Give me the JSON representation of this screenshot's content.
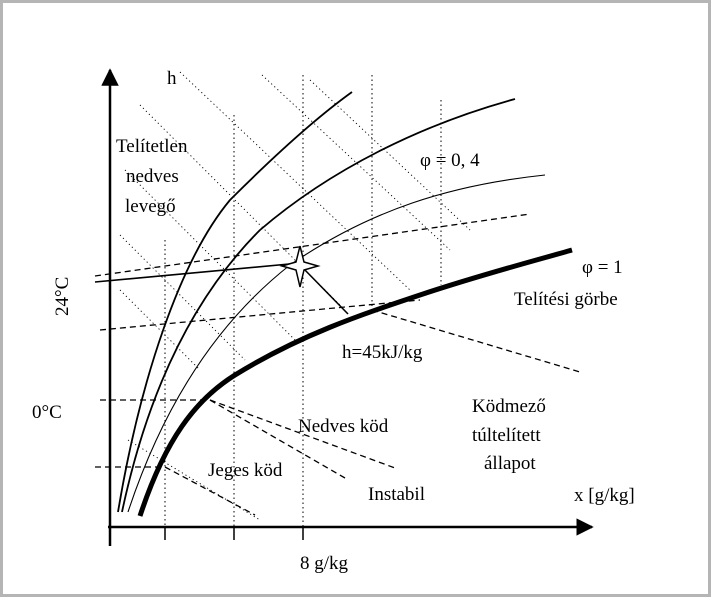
{
  "labels": {
    "h": "h",
    "unsaturated_line1": "Telítetlen",
    "unsaturated_line2": "nedves",
    "unsaturated_line3": "levegő",
    "phi_04": "φ = 0, 4",
    "phi_1": "φ = 1",
    "saturation_curve": "Telítési görbe",
    "enthalpy": "h=45kJ/kg",
    "wet_fog": "Nedves köd",
    "ice_fog": "Jeges köd",
    "instable": "Instabil",
    "fog_region_line1": "Ködmező",
    "fog_region_line2": "túltelített",
    "fog_region_line3": "állapot",
    "x_axis": "x [g/kg]",
    "y_tick_24": "24°C",
    "y_tick_0": "0°C",
    "x_tick_8": "8 g/kg"
  },
  "colors": {
    "ink": "#000000",
    "background": "#ffffff",
    "frame": "#b5b5b5"
  }
}
